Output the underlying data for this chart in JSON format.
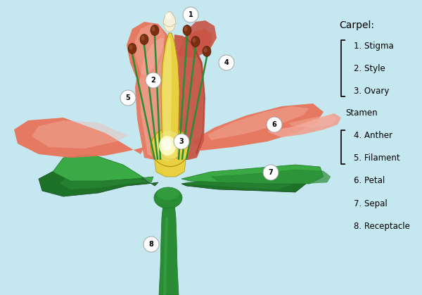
{
  "background_color": "#c5e8f0",
  "legend_title": "Carpel:",
  "legend_items": [
    "1. Stigma",
    "2. Style",
    "3. Ovary",
    "Stamen",
    "4. Anther",
    "5. Filament",
    "6. Petal",
    "7. Sepal",
    "8. Receptacle"
  ],
  "petal_salmon": "#e8735a",
  "petal_salmon_light": "#f0a090",
  "petal_salmon_dark": "#c85545",
  "petal_pink_light": "#f5b8a8",
  "sepal_dark": "#1e7228",
  "sepal_mid": "#2a8c35",
  "sepal_light": "#3aaa45",
  "stem_dark": "#256030",
  "carpel_yellow": "#e8d040",
  "carpel_yellow_light": "#f5e880",
  "ovary_white": "#f8f0c0",
  "anther_brown": "#7a3010",
  "stigma_cream": "#f8f0d0",
  "white": "#ffffff"
}
